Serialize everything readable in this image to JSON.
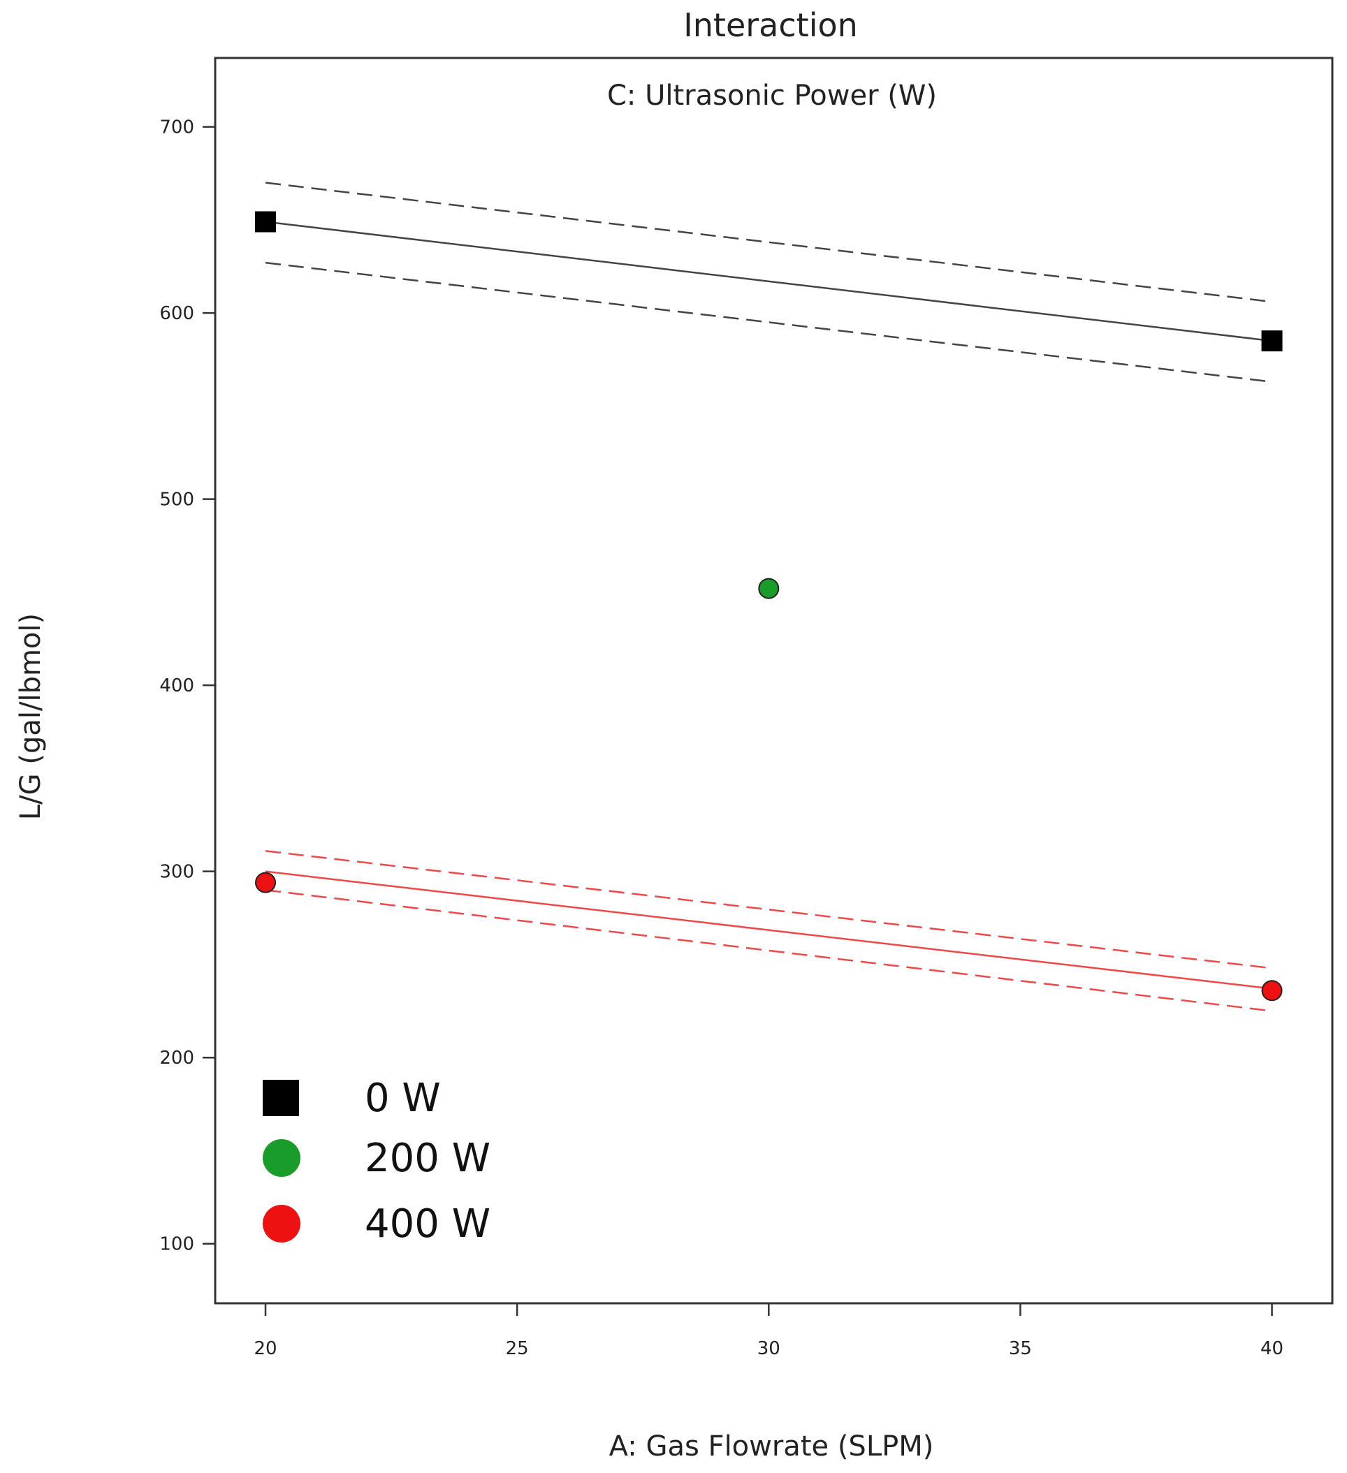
{
  "chart_data": {
    "type": "line",
    "title": "Interaction",
    "subtitle": "C: Ultrasonic Power (W)",
    "xlabel": "A: Gas Flowrate (SLPM)",
    "ylabel": "L/G (gal/lbmol)",
    "xlim": [
      19,
      41.2
    ],
    "ylim": [
      68,
      737
    ],
    "x_ticks": [
      20,
      25,
      30,
      35,
      40
    ],
    "y_ticks": [
      100,
      200,
      300,
      400,
      500,
      600,
      700
    ],
    "grid": false,
    "legend_position": "bottom-left",
    "series": [
      {
        "name": "0 W",
        "color": "#000000",
        "marker": "square",
        "fit": {
          "x": [
            20,
            40
          ],
          "y": [
            649,
            585
          ]
        },
        "ci_upper": {
          "x": [
            20,
            40
          ],
          "y": [
            670,
            606
          ]
        },
        "ci_lower": {
          "x": [
            20,
            40
          ],
          "y": [
            627,
            563
          ]
        },
        "points": [
          {
            "x": 20,
            "y": 649
          },
          {
            "x": 40,
            "y": 585
          }
        ]
      },
      {
        "name": "200 W",
        "color": "#1a9c2a",
        "marker": "circle",
        "points": [
          {
            "x": 30,
            "y": 452
          }
        ]
      },
      {
        "name": "400 W",
        "color": "#ee1111",
        "marker": "circle",
        "fit": {
          "x": [
            20,
            40
          ],
          "y": [
            300,
            237
          ]
        },
        "ci_upper": {
          "x": [
            20,
            40
          ],
          "y": [
            311,
            248
          ]
        },
        "ci_lower": {
          "x": [
            20,
            40
          ],
          "y": [
            290,
            225
          ]
        },
        "points": [
          {
            "x": 20,
            "y": 294
          },
          {
            "x": 40,
            "y": 236
          }
        ]
      }
    ]
  }
}
